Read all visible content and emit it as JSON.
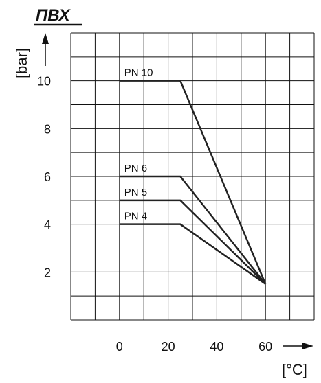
{
  "title": "ПВХ",
  "chart_data": {
    "type": "line",
    "title": "ПВХ",
    "ylabel": "[bar]",
    "xlabel": "[°C]",
    "xlim": [
      -20,
      80
    ],
    "ylim": [
      0,
      12
    ],
    "x_ticks": [
      0,
      20,
      40,
      60
    ],
    "y_ticks": [
      2,
      4,
      6,
      8,
      10
    ],
    "grid": true,
    "series": [
      {
        "name": "PN 10",
        "x": [
          0,
          25,
          60
        ],
        "y": [
          10,
          10,
          1.5
        ]
      },
      {
        "name": "PN 6",
        "x": [
          0,
          25,
          60
        ],
        "y": [
          6,
          6,
          1.5
        ]
      },
      {
        "name": "PN 5",
        "x": [
          0,
          25,
          60
        ],
        "y": [
          5,
          5,
          1.5
        ]
      },
      {
        "name": "PN 4",
        "x": [
          0,
          25,
          60
        ],
        "y": [
          4,
          4,
          1.5
        ]
      }
    ]
  }
}
